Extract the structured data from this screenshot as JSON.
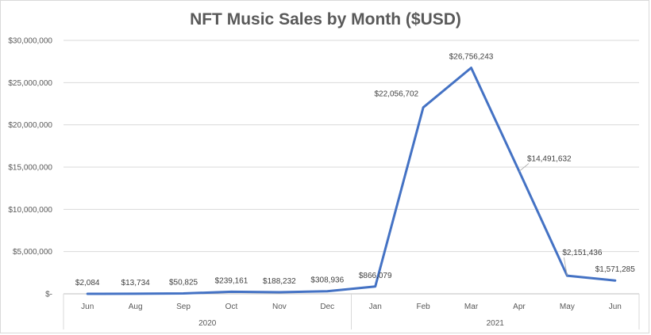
{
  "chart_data": {
    "type": "line",
    "title": "NFT Music Sales by Month ($USD)",
    "xlabel": "",
    "ylabel": "",
    "categories": [
      "Jun",
      "Aug",
      "Sep",
      "Oct",
      "Nov",
      "Dec",
      "Jan",
      "Feb",
      "Mar",
      "Apr",
      "May",
      "Jun"
    ],
    "groups": [
      {
        "label": "2020",
        "count": 6
      },
      {
        "label": "2021",
        "count": 6
      }
    ],
    "series": [
      {
        "values": [
          2084,
          13734,
          50825,
          239161,
          188232,
          308936,
          866079,
          22056702,
          26756243,
          14491632,
          2151436,
          1571285
        ],
        "labels": [
          "$2,084",
          "$13,734",
          "$50,825",
          "$239,161",
          "$188,232",
          "$308,936",
          "$866,079",
          "$22,056,702",
          "$26,756,243",
          "$14,491,632",
          "$2,151,436",
          "$1,571,285"
        ],
        "color": "#4472c4"
      }
    ],
    "ylim": [
      0,
      30000000
    ],
    "yticks": [
      0,
      5000000,
      10000000,
      15000000,
      20000000,
      25000000,
      30000000
    ],
    "ytick_labels": [
      "$-",
      "$5,000,000",
      "$10,000,000",
      "$15,000,000",
      "$20,000,000",
      "$25,000,000",
      "$30,000,000"
    ],
    "grid": true,
    "legend": "none"
  }
}
